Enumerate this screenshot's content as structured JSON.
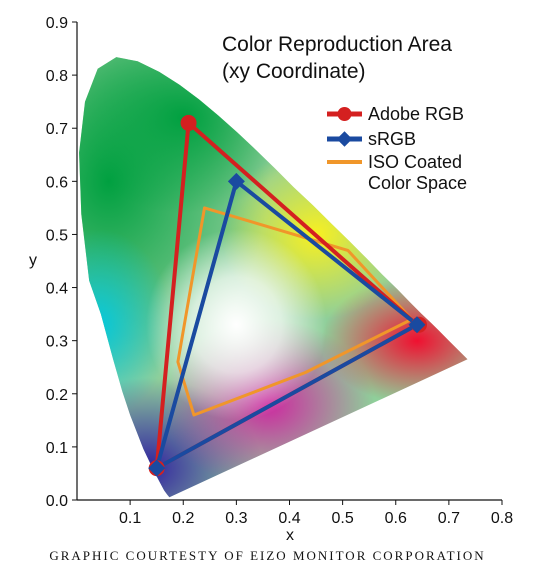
{
  "chart_data": {
    "type": "scatter",
    "title": "Color Reproduction Area",
    "subtitle": "(xy Coordinate)",
    "xlabel": "x",
    "ylabel": "y",
    "xlim": [
      0,
      0.8
    ],
    "ylim": [
      0,
      0.9
    ],
    "x_ticks": [
      "0.1",
      "0.2",
      "0.3",
      "0.4",
      "0.5",
      "0.6",
      "0.7",
      "0.8"
    ],
    "y_ticks": [
      "0.0",
      "0.1",
      "0.2",
      "0.3",
      "0.4",
      "0.5",
      "0.6",
      "0.7",
      "0.8",
      "0.9"
    ],
    "legend_position": "top-right",
    "series": [
      {
        "name": "Adobe RGB",
        "color": "#d42020",
        "marker": "circle",
        "points": [
          [
            0.64,
            0.33
          ],
          [
            0.21,
            0.71
          ],
          [
            0.15,
            0.06
          ]
        ]
      },
      {
        "name": "sRGB",
        "color": "#1a4aa0",
        "marker": "diamond",
        "points": [
          [
            0.64,
            0.33
          ],
          [
            0.3,
            0.6
          ],
          [
            0.15,
            0.06
          ]
        ]
      },
      {
        "name": "ISO Coated Color Space",
        "legend_lines": [
          "ISO Coated",
          "Color Space"
        ],
        "color": "#f0962a",
        "marker": "none",
        "points": [
          [
            0.63,
            0.34
          ],
          [
            0.51,
            0.47
          ],
          [
            0.24,
            0.55
          ],
          [
            0.19,
            0.26
          ],
          [
            0.22,
            0.16
          ],
          [
            0.43,
            0.24
          ]
        ]
      }
    ],
    "background": "CIE 1931 chromaticity diagram (spectral locus)"
  },
  "credit": "GRAPHIC COURTESTY OF EIZO MONITOR CORPORATION"
}
